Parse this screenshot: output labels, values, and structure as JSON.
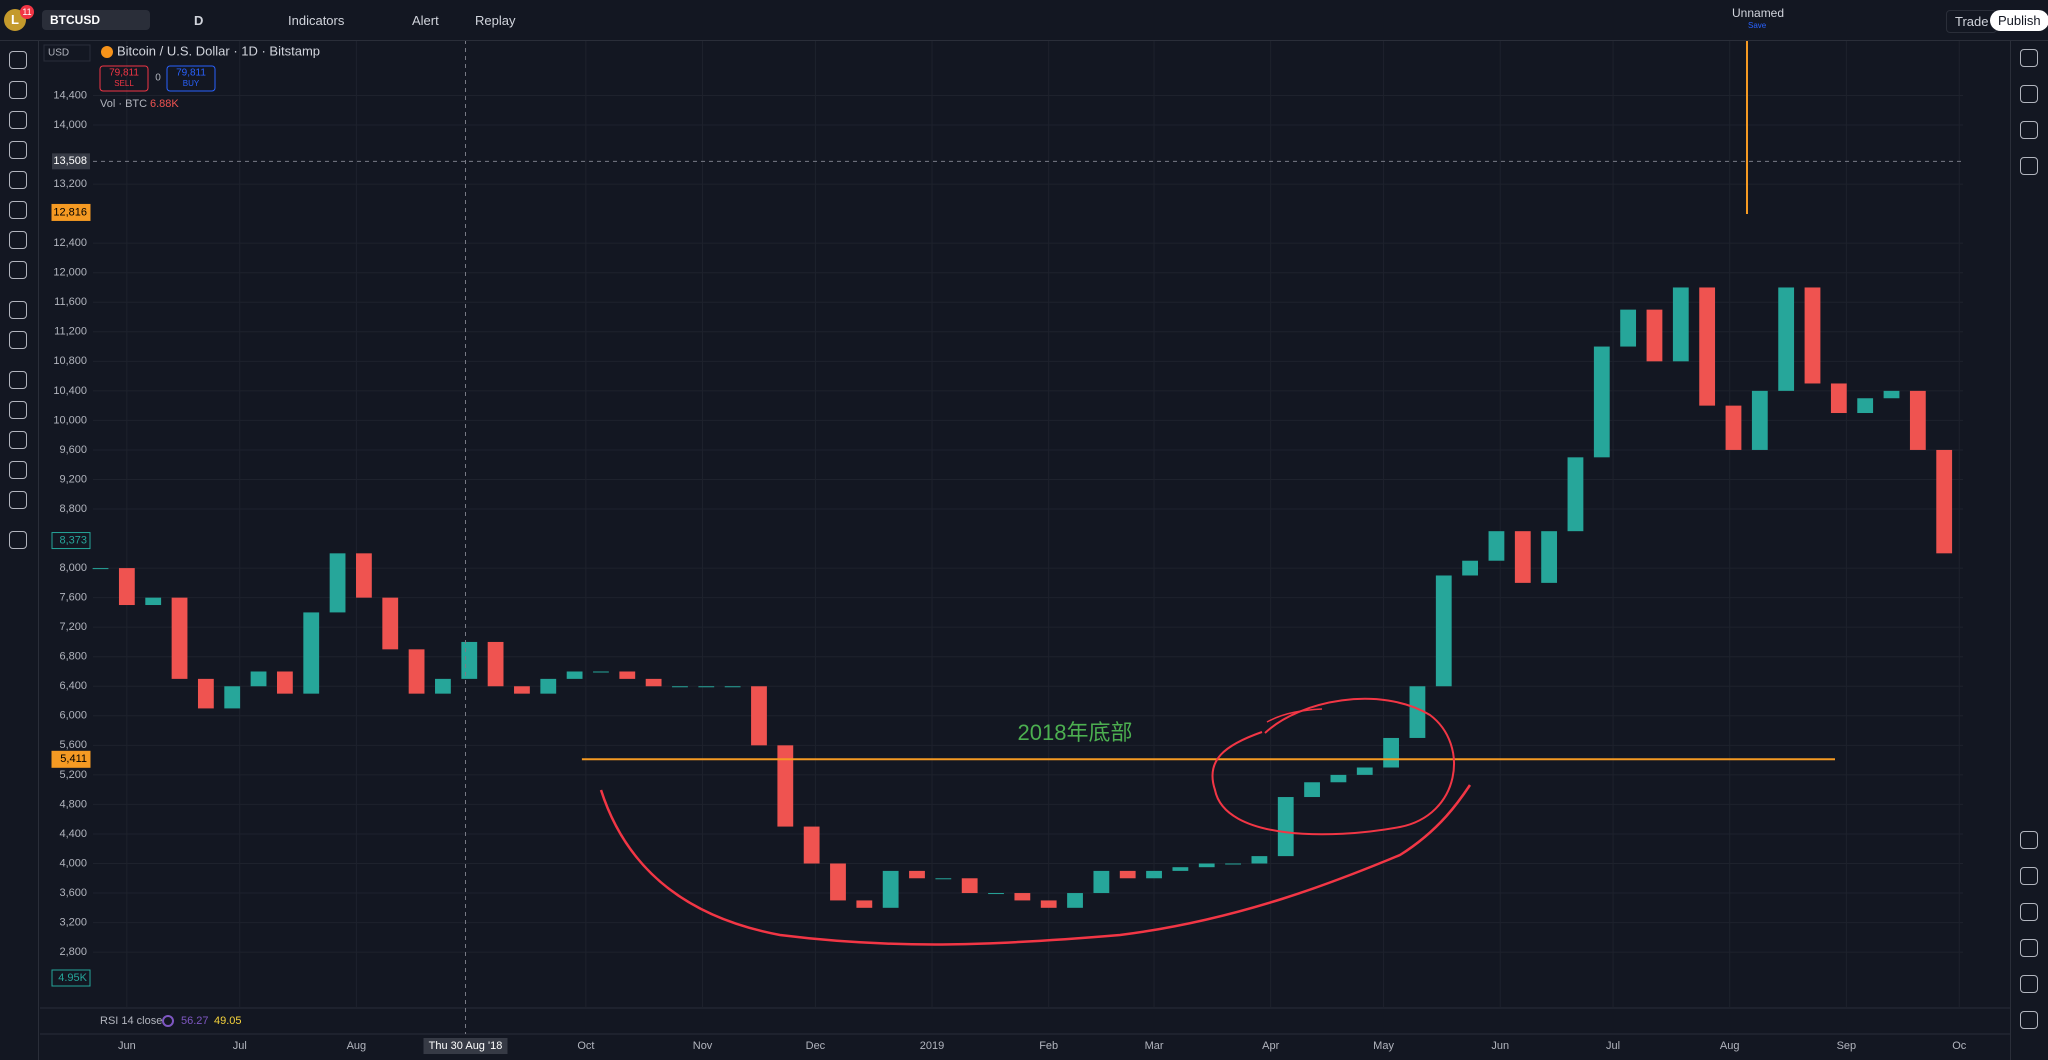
{
  "toolbar": {
    "avatar": "L",
    "badge": "11",
    "symbol": "BTCUSD",
    "interval": "D",
    "indicators": "Indicators",
    "alert": "Alert",
    "replay": "Replay",
    "layout_name": "Unnamed",
    "save": "Save",
    "trade": "Trade",
    "publish": "Publish"
  },
  "legend": {
    "currency": "USD",
    "title": "Bitcoin / U.S. Dollar · 1D · Bitstamp",
    "sell_price": "79,811",
    "sell": "SELL",
    "spread": "0",
    "buy_price": "79,811",
    "buy": "BUY",
    "volume_name": "Vol · BTC",
    "volume_value": "6.88K",
    "rsi_name": "RSI 14 close",
    "rsi_value": "56.27",
    "rsi_ma": "49.05"
  },
  "chart_data": {
    "type": "candlestick",
    "x": [
      -7,
      0,
      7,
      14,
      21,
      28,
      35,
      42,
      49,
      56,
      63,
      70,
      77,
      84,
      91,
      98,
      105,
      112,
      119,
      126,
      133,
      140,
      147,
      154,
      161,
      168,
      175,
      182,
      189,
      196,
      203,
      210,
      217,
      224,
      231,
      238,
      245,
      252,
      259,
      266,
      273,
      280,
      287,
      294,
      301,
      308,
      315,
      322,
      329,
      336,
      343,
      350,
      357,
      364,
      371,
      378,
      385,
      392,
      399,
      406,
      413,
      420,
      427,
      434,
      441,
      448,
      455,
      462,
      469,
      476,
      483
    ],
    "values": [
      8000,
      7500,
      7600,
      6500,
      6100,
      6400,
      6600,
      6300,
      7400,
      8200,
      7600,
      6900,
      6300,
      6500,
      7000,
      6400,
      6300,
      6500,
      6600,
      6600,
      6500,
      6400,
      6400,
      6400,
      6400,
      5600,
      4500,
      4000,
      3500,
      3400,
      3900,
      3800,
      3800,
      3600,
      3600,
      3500,
      3400,
      3600,
      3900,
      3800,
      3900,
      3950,
      4000,
      4000,
      4100,
      4900,
      5100,
      5200,
      5300,
      5700,
      6400,
      7900,
      8100,
      8500,
      7800,
      8500,
      9500,
      11000,
      11500,
      10800,
      11800,
      10200,
      9600,
      10400,
      11800,
      10500,
      10100,
      10300,
      10400,
      9600,
      8200
    ],
    "up_color": "#26a69a",
    "down_color": "#ef5350",
    "xlim": [
      -9,
      488
    ],
    "ylim": [
      2084,
      15151
    ],
    "xticks": [
      {
        "value": 0,
        "label": "Jun"
      },
      {
        "value": 30,
        "label": "Jul"
      },
      {
        "value": 61,
        "label": "Aug"
      },
      {
        "value": 122,
        "label": "Oct"
      },
      {
        "value": 153,
        "label": "Nov"
      },
      {
        "value": 183,
        "label": "Dec"
      },
      {
        "value": 214,
        "label": "2019"
      },
      {
        "value": 245,
        "label": "Feb"
      },
      {
        "value": 273,
        "label": "Mar"
      },
      {
        "value": 304,
        "label": "Apr"
      },
      {
        "value": 334,
        "label": "May"
      },
      {
        "value": 365,
        "label": "Jun"
      },
      {
        "value": 395,
        "label": "Jul"
      },
      {
        "value": 426,
        "label": "Aug"
      },
      {
        "value": 457,
        "label": "Sep"
      },
      {
        "value": 487,
        "label": "Oc"
      }
    ],
    "yticks": [
      {
        "value": 2800,
        "label": "2,800"
      },
      {
        "value": 3200,
        "label": "3,200"
      },
      {
        "value": 3600,
        "label": "3,600"
      },
      {
        "value": 4000,
        "label": "4,000"
      },
      {
        "value": 4400,
        "label": "4,400"
      },
      {
        "value": 4800,
        "label": "4,800"
      },
      {
        "value": 5200,
        "label": "5,200"
      },
      {
        "value": 5600,
        "label": "5,600"
      },
      {
        "value": 6000,
        "label": "6,000"
      },
      {
        "value": 6400,
        "label": "6,400"
      },
      {
        "value": 6800,
        "label": "6,800"
      },
      {
        "value": 7200,
        "label": "7,200"
      },
      {
        "value": 7600,
        "label": "7,600"
      },
      {
        "value": 8000,
        "label": "8,000"
      },
      {
        "value": 8800,
        "label": "8,800"
      },
      {
        "value": 9200,
        "label": "9,200"
      },
      {
        "value": 9600,
        "label": "9,600"
      },
      {
        "value": 10000,
        "label": "10,000"
      },
      {
        "value": 10400,
        "label": "10,400"
      },
      {
        "value": 10800,
        "label": "10,800"
      },
      {
        "value": 11200,
        "label": "11,200"
      },
      {
        "value": 11600,
        "label": "11,600"
      },
      {
        "value": 12000,
        "label": "12,000"
      },
      {
        "value": 12400,
        "label": "12,400"
      },
      {
        "value": 13200,
        "label": "13,200"
      },
      {
        "value": 14000,
        "label": "14,000"
      },
      {
        "value": 14400,
        "label": "14,400"
      }
    ],
    "crosshair_x": {
      "value": 90,
      "label": "Thu 30 Aug '18"
    },
    "crosshair_y": {
      "value": 13508,
      "label": "13,508"
    },
    "price_labels": [
      {
        "value": 12816,
        "label": "12,816",
        "color": "#f59a23"
      },
      {
        "value": 8373,
        "label": "8,373",
        "color": "#26a69a"
      },
      {
        "value": 5411,
        "label": "5,411",
        "color": "#f59a23"
      }
    ],
    "horizontal_line": {
      "value": 5411,
      "color": "#f59a23"
    },
    "volume_label": "4.95K",
    "annotation": "2018年底部"
  }
}
